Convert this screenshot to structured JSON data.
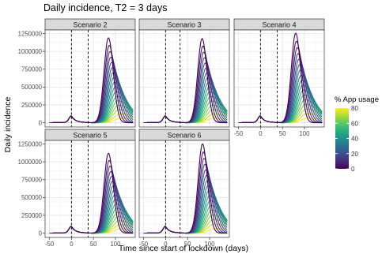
{
  "chart_data": {
    "type": "line",
    "title": "Daily incidence, T2 = 3 days",
    "xlabel": "Time since start of lockdown (days)",
    "ylabel": "Daily incidence",
    "x_ticks": [
      -50,
      0,
      50,
      100
    ],
    "y_ticks": [
      "0",
      "250000",
      "500000",
      "750000",
      "1000000",
      "1250000"
    ],
    "y_tick_values": [
      0,
      250000,
      500000,
      750000,
      1000000,
      1250000
    ],
    "xlim": [
      -60,
      145
    ],
    "ylim": [
      -60000,
      1300000
    ],
    "grid": true,
    "legend": {
      "title": "% App usage",
      "ticks": [
        "80",
        "60",
        "40",
        "20",
        "0"
      ],
      "tick_values": [
        80,
        60,
        40,
        20,
        0
      ],
      "range": [
        0,
        80
      ],
      "placement": "right"
    },
    "colormap": [
      "#440154",
      "#472c7a",
      "#3b518b",
      "#2c718e",
      "#21908d",
      "#27ad81",
      "#5cc863",
      "#aadc32",
      "#fde725"
    ],
    "app_usage_levels": [
      0,
      5,
      10,
      15,
      20,
      25,
      30,
      35,
      40,
      45,
      50,
      55,
      60,
      65,
      70,
      75,
      80
    ],
    "facets": [
      {
        "label": "Scenario 2",
        "lockdown_end": 38,
        "peak_day": 84,
        "peak_max": 1150000
      },
      {
        "label": "Scenario 3",
        "lockdown_end": 33,
        "peak_day": 83,
        "peak_max": 1140000
      },
      {
        "label": "Scenario 4",
        "lockdown_end": 38,
        "peak_day": 80,
        "peak_max": 1215000
      },
      {
        "label": "Scenario 5",
        "lockdown_end": 38,
        "peak_day": 84,
        "peak_max": 1080000
      },
      {
        "label": "Scenario 6",
        "lockdown_end": 33,
        "peak_day": 84,
        "peak_max": 1210000
      }
    ]
  }
}
